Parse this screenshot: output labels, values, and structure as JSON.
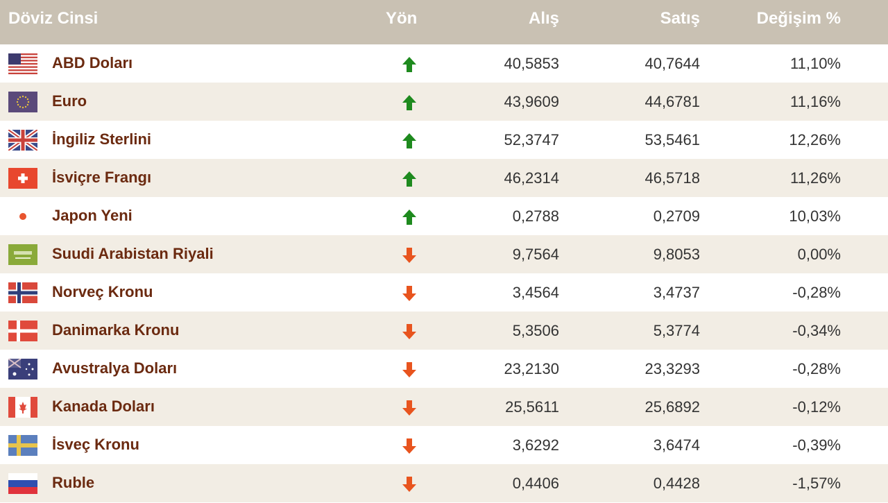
{
  "header": {
    "name": "Döviz Cinsi",
    "direction": "Yön",
    "buy": "Alış",
    "sell": "Satış",
    "change": "Değişim %"
  },
  "colors": {
    "up": "#1e8a1e",
    "down": "#e8541e",
    "name": "#6b2a10",
    "header_bg": "#c9c1b3",
    "stripe": "#f2ede4"
  },
  "rows": [
    {
      "flag": "us-flag-icon",
      "name": "ABD Doları",
      "direction": "up",
      "buy": "40,5853",
      "sell": "40,7644",
      "change": "11,10%"
    },
    {
      "flag": "eu-flag-icon",
      "name": "Euro",
      "direction": "up",
      "buy": "43,9609",
      "sell": "44,6781",
      "change": "11,16%"
    },
    {
      "flag": "uk-flag-icon",
      "name": "İngiliz Sterlini",
      "direction": "up",
      "buy": "52,3747",
      "sell": "53,5461",
      "change": "12,26%"
    },
    {
      "flag": "ch-flag-icon",
      "name": "İsviçre Frangı",
      "direction": "up",
      "buy": "46,2314",
      "sell": "46,5718",
      "change": "11,26%"
    },
    {
      "flag": "jp-flag-icon",
      "name": "Japon Yeni",
      "direction": "up",
      "buy": "0,2788",
      "sell": "0,2709",
      "change": "10,03%"
    },
    {
      "flag": "sa-flag-icon",
      "name": "Suudi Arabistan Riyali",
      "direction": "down",
      "buy": "9,7564",
      "sell": "9,8053",
      "change": "0,00%"
    },
    {
      "flag": "no-flag-icon",
      "name": "Norveç Kronu",
      "direction": "down",
      "buy": "3,4564",
      "sell": "3,4737",
      "change": "-0,28%"
    },
    {
      "flag": "dk-flag-icon",
      "name": "Danimarka Kronu",
      "direction": "down",
      "buy": "5,3506",
      "sell": "5,3774",
      "change": "-0,34%"
    },
    {
      "flag": "au-flag-icon",
      "name": "Avustralya Doları",
      "direction": "down",
      "buy": "23,2130",
      "sell": "23,3293",
      "change": "-0,28%"
    },
    {
      "flag": "ca-flag-icon",
      "name": "Kanada Doları",
      "direction": "down",
      "buy": "25,5611",
      "sell": "25,6892",
      "change": "-0,12%"
    },
    {
      "flag": "se-flag-icon",
      "name": "İsveç Kronu",
      "direction": "down",
      "buy": "3,6292",
      "sell": "3,6474",
      "change": "-0,39%"
    },
    {
      "flag": "ru-flag-icon",
      "name": "Ruble",
      "direction": "down",
      "buy": "0,4406",
      "sell": "0,4428",
      "change": "-1,57%"
    }
  ]
}
